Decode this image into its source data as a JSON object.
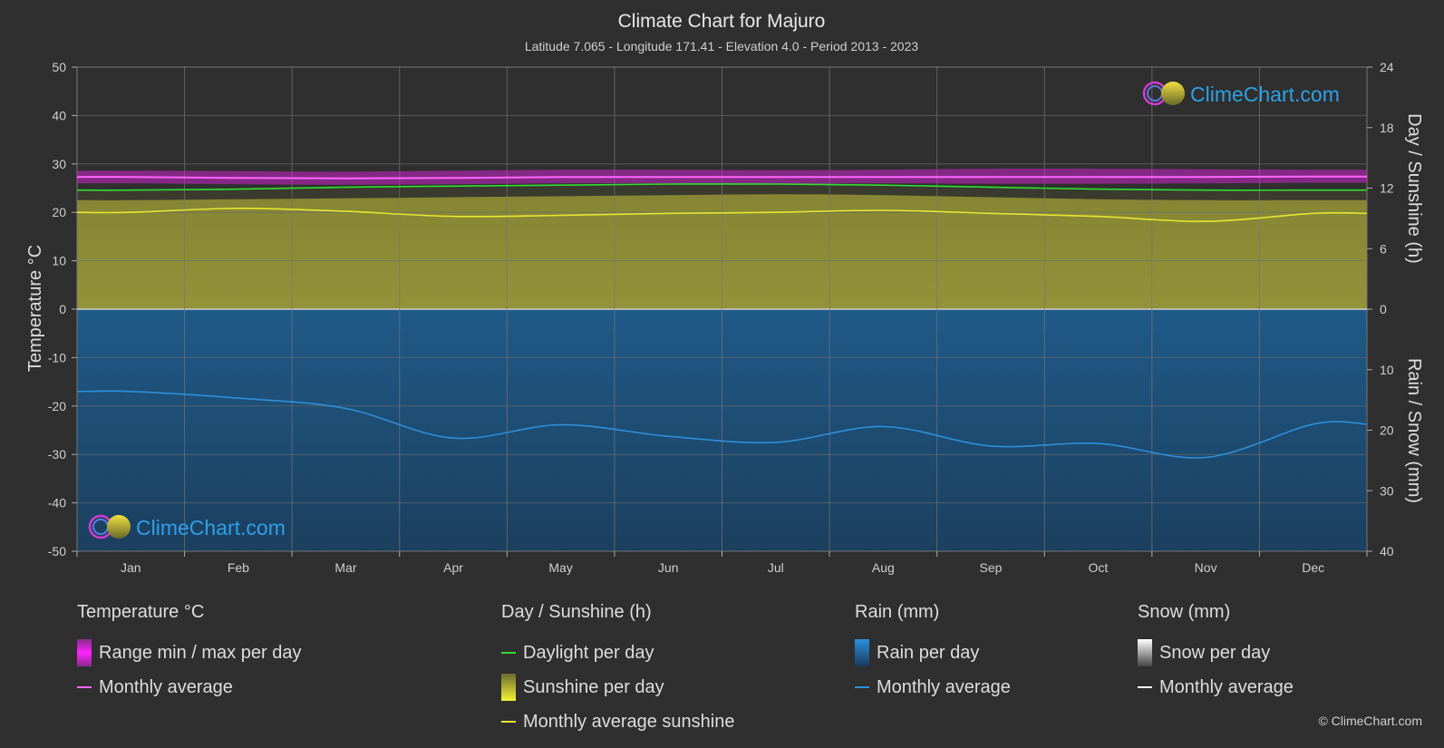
{
  "title": "Climate Chart for Majuro",
  "subtitle": "Latitude 7.065 - Longitude 171.41 - Elevation 4.0 - Period 2013 - 2023",
  "watermark": "ClimeChart.com",
  "copyright": "© ClimeChart.com",
  "colors": {
    "background": "#2f2f2f",
    "temp_range": "#cc22cc",
    "temp_avg": "#ff66ff",
    "daylight": "#33dd33",
    "sunshine_fill": "#8f8f33",
    "sunshine_avg": "#e6e633",
    "rain_fill": "#1f5f8f",
    "rain_avg": "#2e8fd9",
    "snow_avg": "#ffffff",
    "watermark_text": "#2fa0e6"
  },
  "chart_data": {
    "type": "area",
    "months": [
      "Jan",
      "Feb",
      "Mar",
      "Apr",
      "May",
      "Jun",
      "Jul",
      "Aug",
      "Sep",
      "Oct",
      "Nov",
      "Dec"
    ],
    "y_left_label": "Temperature °C",
    "y_left_ticks": [
      "50",
      "40",
      "30",
      "20",
      "10",
      "0",
      "-10",
      "-20",
      "-30",
      "-40",
      "-50"
    ],
    "y_left_range": [
      -50,
      50
    ],
    "y_right_top_label": "Day / Sunshine (h)",
    "y_right_top_ticks": [
      "24",
      "18",
      "12",
      "6",
      "0"
    ],
    "y_right_top_range": [
      0,
      24
    ],
    "y_right_bottom_label": "Rain / Snow (mm)",
    "y_right_bottom_ticks": [
      "0",
      "10",
      "20",
      "30",
      "40"
    ],
    "y_right_bottom_range": [
      0,
      40
    ],
    "grid": true,
    "series": [
      {
        "name": "Monthly average",
        "group": "Temperature °C",
        "unit": "°C",
        "values": [
          27.3,
          27.1,
          27.0,
          27.1,
          27.3,
          27.3,
          27.3,
          27.3,
          27.3,
          27.3,
          27.3,
          27.4
        ]
      },
      {
        "name": "Range max per day",
        "group": "Temperature °C",
        "unit": "°C",
        "values": [
          28.6,
          28.5,
          28.4,
          28.6,
          28.8,
          28.8,
          28.7,
          28.8,
          29.0,
          29.0,
          28.9,
          28.8
        ]
      },
      {
        "name": "Range min per day",
        "group": "Temperature °C",
        "unit": "°C",
        "values": [
          26.0,
          25.8,
          25.7,
          25.8,
          26.0,
          26.0,
          25.9,
          26.0,
          25.9,
          25.9,
          26.0,
          26.1
        ]
      },
      {
        "name": "Daylight per day",
        "group": "Day / Sunshine (h)",
        "unit": "h",
        "values": [
          11.8,
          11.9,
          12.1,
          12.2,
          12.3,
          12.4,
          12.4,
          12.3,
          12.1,
          11.9,
          11.8,
          11.8
        ]
      },
      {
        "name": "Sunshine per day",
        "group": "Day / Sunshine (h)",
        "unit": "h",
        "values": [
          10.8,
          10.9,
          11.0,
          11.1,
          11.2,
          11.3,
          11.4,
          11.3,
          11.1,
          10.9,
          10.8,
          10.8
        ]
      },
      {
        "name": "Monthly average sunshine",
        "group": "Day / Sunshine (h)",
        "unit": "h",
        "values": [
          9.6,
          10.0,
          9.7,
          9.2,
          9.3,
          9.5,
          9.6,
          9.8,
          9.5,
          9.2,
          8.7,
          9.5
        ]
      },
      {
        "name": "Monthly average",
        "group": "Rain (mm)",
        "unit": "mm",
        "values": [
          13.6,
          14.7,
          16.4,
          21.3,
          19.1,
          21.0,
          22.0,
          19.4,
          22.6,
          22.2,
          24.5,
          19.0
        ]
      },
      {
        "name": "Monthly average",
        "group": "Snow (mm)",
        "unit": "mm",
        "values": [
          0,
          0,
          0,
          0,
          0,
          0,
          0,
          0,
          0,
          0,
          0,
          0
        ]
      }
    ]
  },
  "legend": {
    "temperature": {
      "title": "Temperature °C",
      "items": [
        "Range min / max per day",
        "Monthly average"
      ]
    },
    "sunshine": {
      "title": "Day / Sunshine (h)",
      "items": [
        "Daylight per day",
        "Sunshine per day",
        "Monthly average sunshine"
      ]
    },
    "rain": {
      "title": "Rain (mm)",
      "items": [
        "Rain per day",
        "Monthly average"
      ]
    },
    "snow": {
      "title": "Snow (mm)",
      "items": [
        "Snow per day",
        "Monthly average"
      ]
    }
  }
}
